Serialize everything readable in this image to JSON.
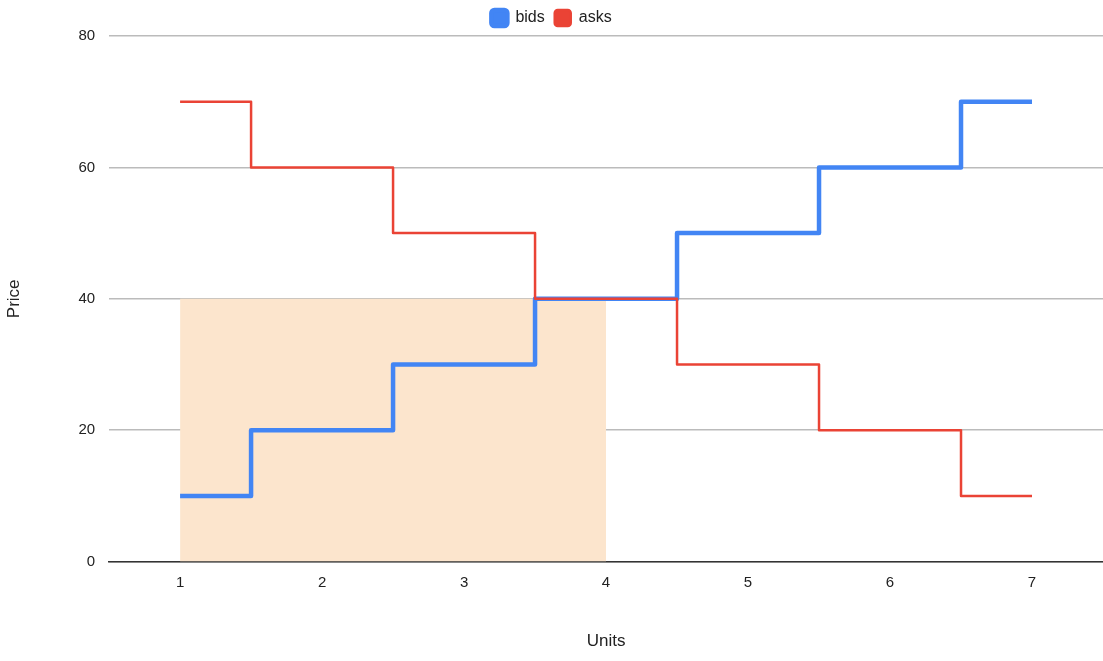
{
  "chart_data": {
    "type": "step",
    "xlabel": "Units",
    "ylabel": "Price",
    "categories": [
      "1",
      "2",
      "3",
      "4",
      "5",
      "6",
      "7"
    ],
    "series": [
      {
        "type": "area",
        "color": "#fce5cd",
        "values": [
          40,
          40,
          40,
          40,
          null,
          null,
          null
        ]
      },
      {
        "name": "bids",
        "color": "#4285f4",
        "values": [
          10,
          20,
          30,
          40,
          50,
          60,
          70
        ]
      },
      {
        "name": "asks",
        "color": "#ea4335",
        "values": [
          70,
          60,
          50,
          40,
          30,
          20,
          10
        ]
      }
    ],
    "ylim": [
      0,
      80
    ],
    "yticks": [
      0,
      20,
      40,
      60,
      80
    ],
    "grid": "y",
    "legend": "top",
    "marker": "none"
  }
}
